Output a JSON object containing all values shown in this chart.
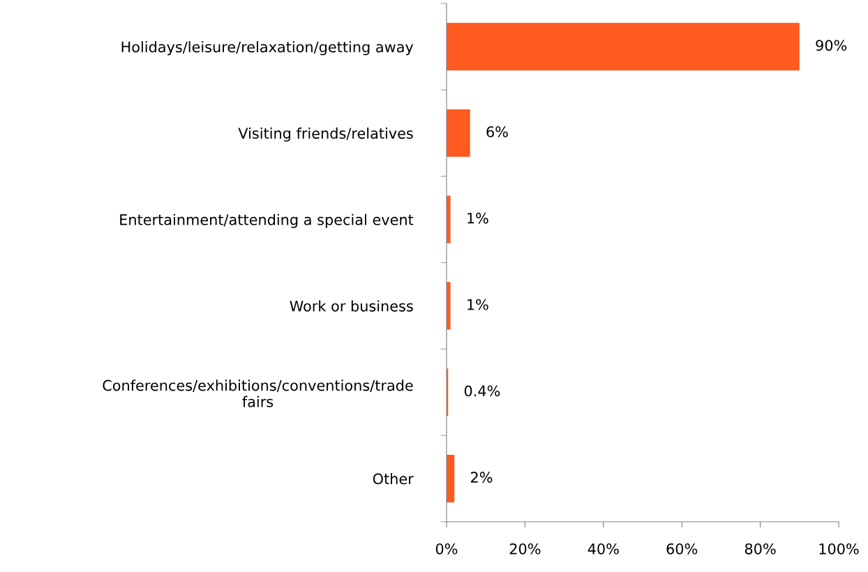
{
  "chart_data": {
    "type": "bar",
    "orientation": "horizontal",
    "categories": [
      "Holidays/leisure/relaxation/getting away",
      "Visiting friends/relatives",
      "Entertainment/attending a special event",
      "Work or business",
      "Conferences/exhibitions/conventions/trade\nfairs",
      "Other"
    ],
    "values": [
      90,
      6,
      1,
      1,
      0.4,
      2
    ],
    "value_labels": [
      "90%",
      "6%",
      "1%",
      "1%",
      "0.4%",
      "2%"
    ],
    "color": "#ff5a1f",
    "xlim": [
      0,
      100
    ],
    "xticks": [
      {
        "value": 0,
        "label": "0%"
      },
      {
        "value": 20,
        "label": "20%"
      },
      {
        "value": 40,
        "label": "40%"
      },
      {
        "value": 60,
        "label": "60%"
      },
      {
        "value": 80,
        "label": "80%"
      },
      {
        "value": 100,
        "label": "100%"
      }
    ],
    "grid": false,
    "legend": false
  }
}
